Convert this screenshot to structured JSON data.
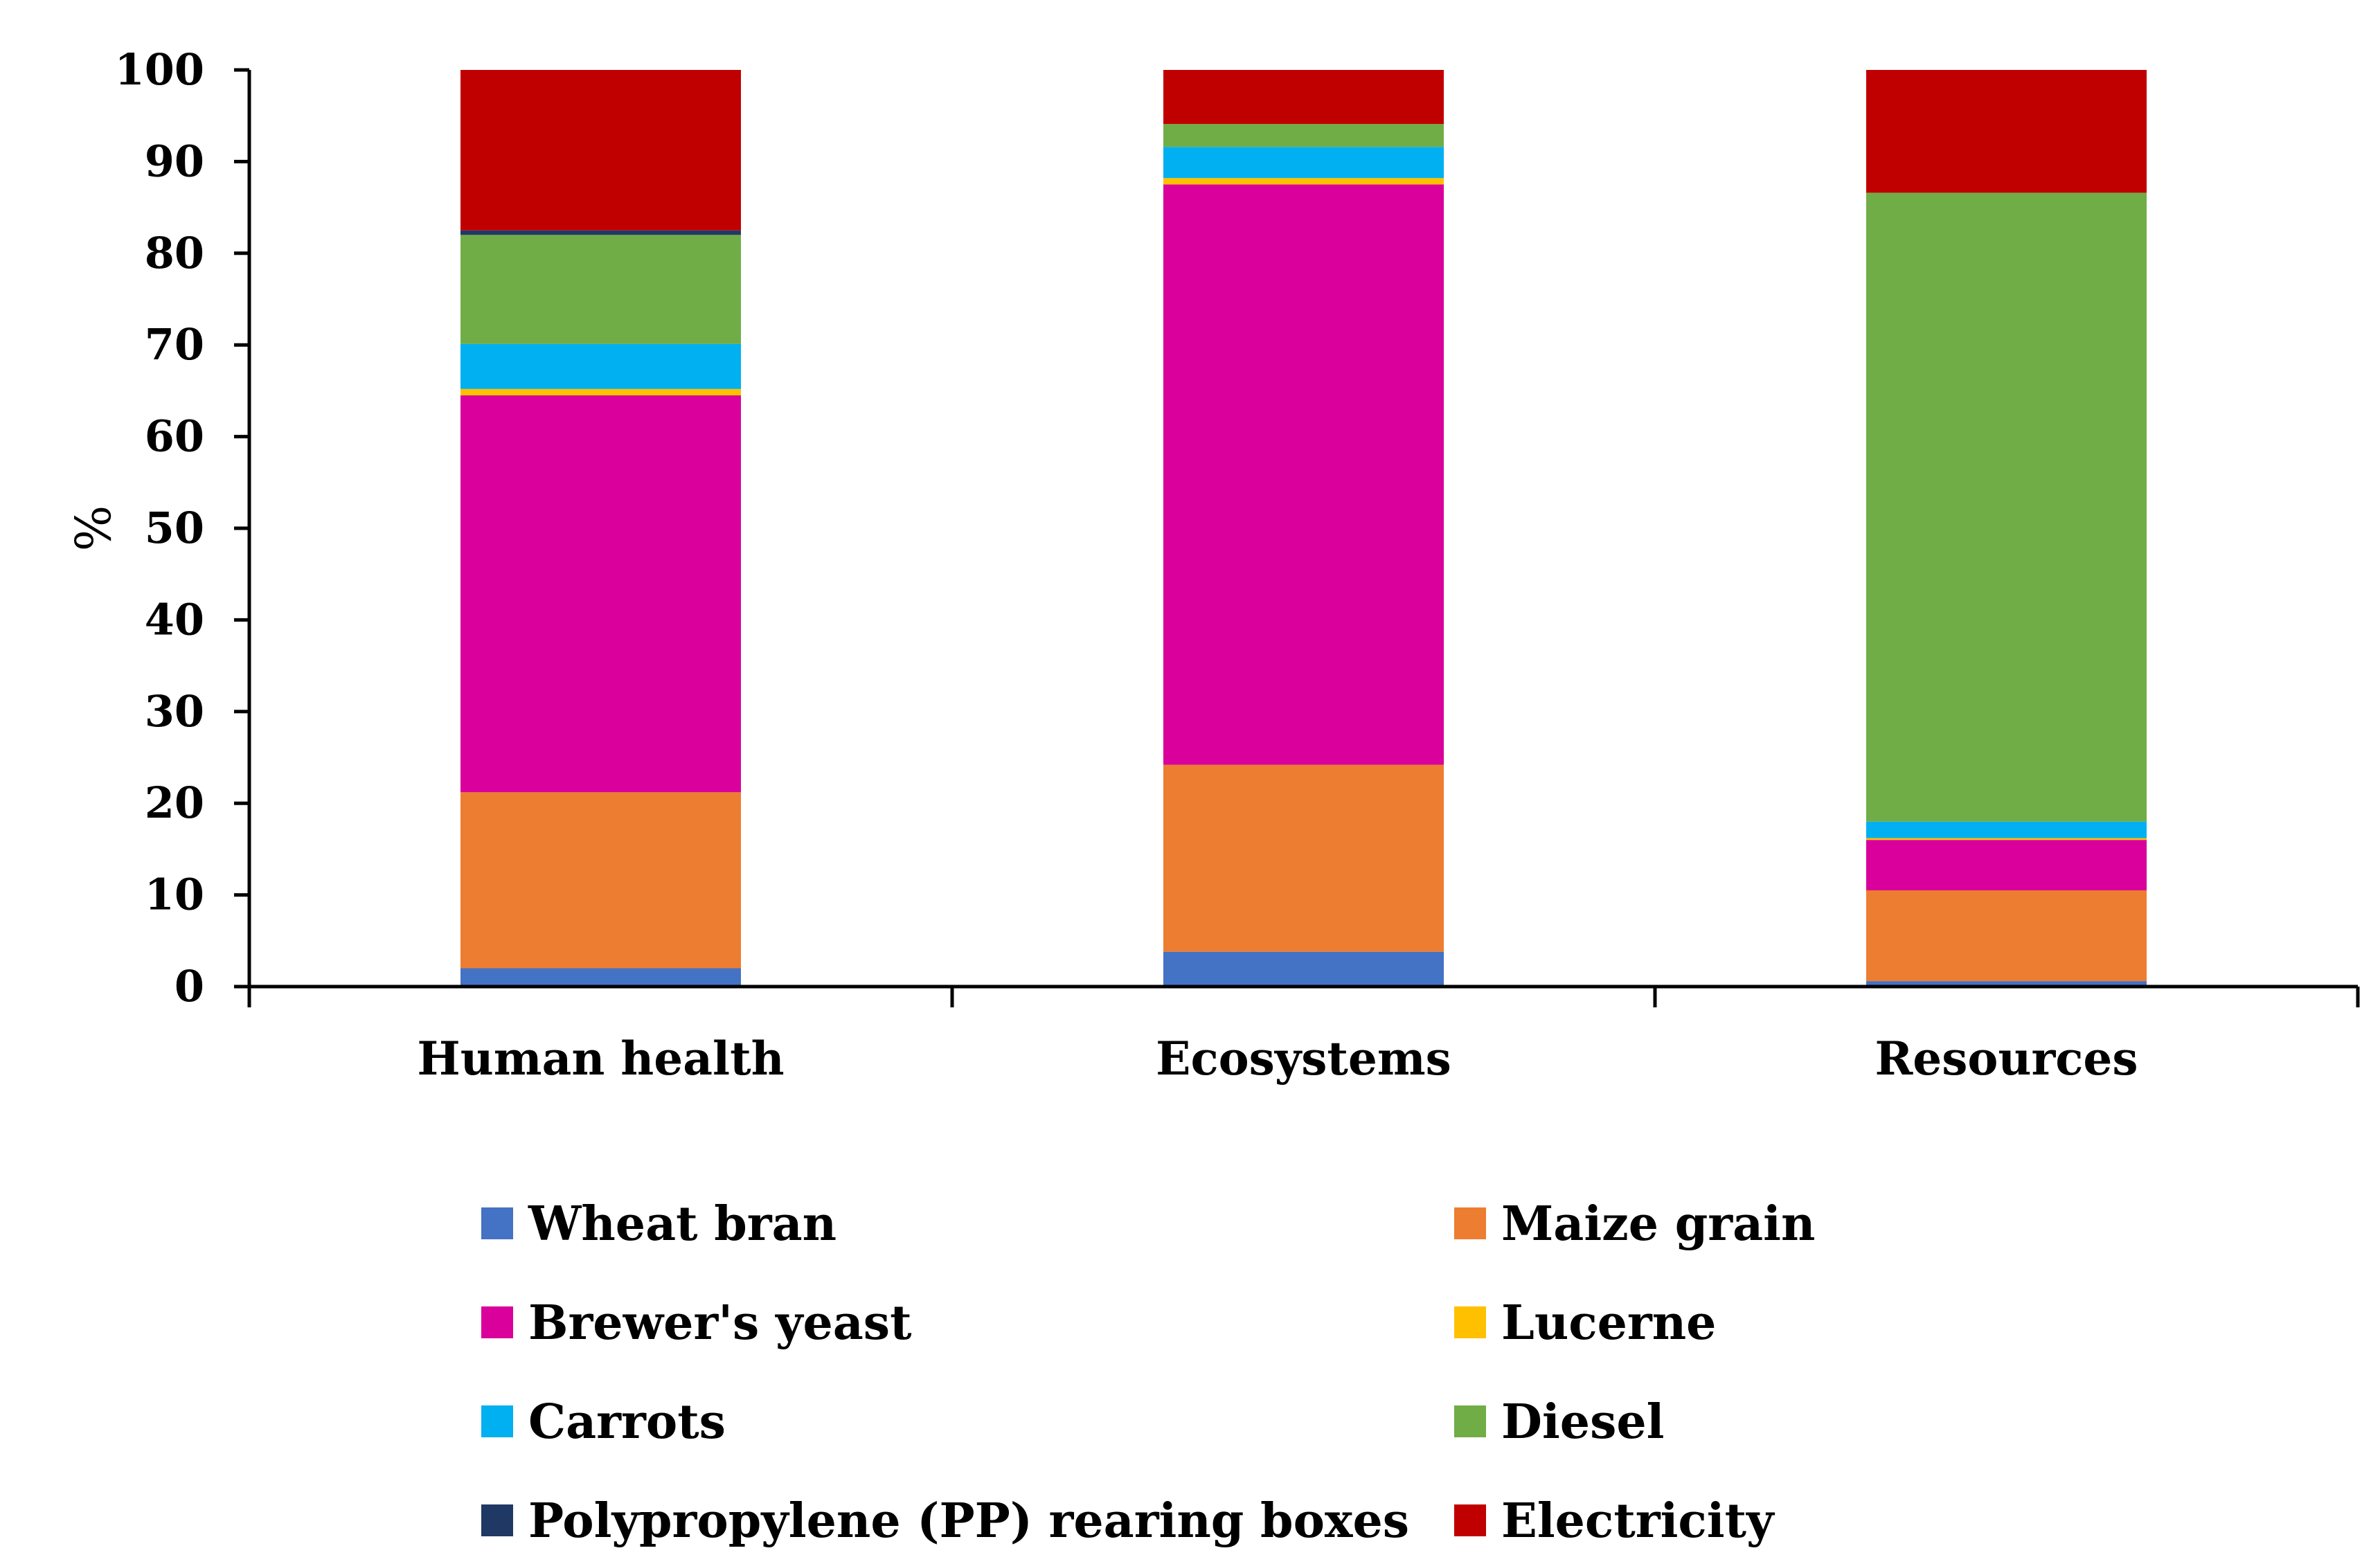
{
  "chart_data": {
    "type": "bar",
    "stacked": true,
    "title": "",
    "xlabel": "",
    "ylabel": "%",
    "ylim": [
      0,
      100
    ],
    "yticks": [
      0,
      10,
      20,
      30,
      40,
      50,
      60,
      70,
      80,
      90,
      100
    ],
    "categories": [
      "Human health",
      "Ecosystems",
      "Resources"
    ],
    "grid": false,
    "legend_position": "bottom",
    "series": [
      {
        "name": "Wheat bran",
        "color": "#4472C4",
        "values": [
          2.0,
          3.8,
          0.6
        ]
      },
      {
        "name": "Maize grain",
        "color": "#ED7D31",
        "values": [
          19.2,
          20.4,
          9.9
        ]
      },
      {
        "name": "Brewer's yeast",
        "color": "#D9009B",
        "values": [
          43.3,
          63.3,
          5.5
        ]
      },
      {
        "name": "Lucerne",
        "color": "#FFC000",
        "values": [
          0.7,
          0.7,
          0.2
        ]
      },
      {
        "name": "Carrots",
        "color": "#00B0F0",
        "values": [
          4.9,
          3.4,
          1.8
        ]
      },
      {
        "name": "Diesel",
        "color": "#70AD47",
        "values": [
          11.9,
          2.5,
          68.6
        ]
      },
      {
        "name": "Polypropylene (PP) rearing boxes",
        "color": "#203864",
        "values": [
          0.5,
          0.0,
          0.0
        ]
      },
      {
        "name": "Electricity",
        "color": "#C00000",
        "values": [
          17.5,
          5.9,
          13.4
        ]
      }
    ]
  }
}
